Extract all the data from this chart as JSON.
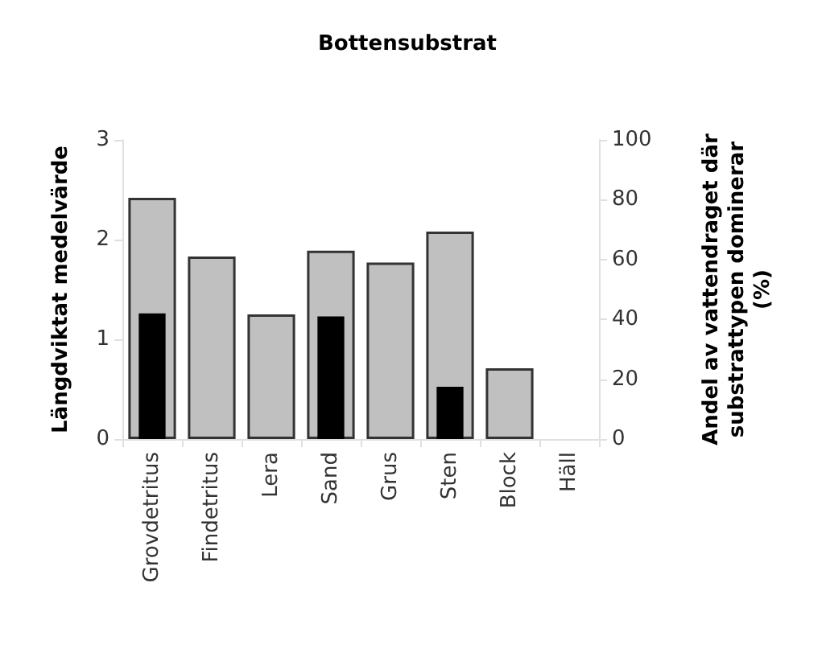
{
  "chart_data": {
    "type": "bar",
    "title": "Bottensubstrat",
    "ylabel": "Längdviktat medelvärde",
    "y2label": "Andel av vattendraget där\nsubstrattypen dominerar\n(%)",
    "categories": [
      "Grovdetritus",
      "Findetritus",
      "Lera",
      "Sand",
      "Grus",
      "Sten",
      "Block",
      "Häll"
    ],
    "series": [
      {
        "color": "#c0c0c0",
        "values": [
          2.42,
          1.83,
          1.25,
          1.89,
          1.77,
          2.08,
          0.71,
          null
        ]
      },
      {
        "color": "#000000",
        "axis": "y2",
        "values": [
          42,
          null,
          null,
          41,
          null,
          17.5,
          null,
          null
        ]
      }
    ],
    "ylim": [
      0,
      3
    ],
    "yticks": [
      0,
      1,
      2,
      3
    ],
    "y2lim": [
      0,
      100
    ],
    "y2ticks": [
      0,
      20,
      40,
      60,
      80,
      100
    ],
    "grid": false
  }
}
